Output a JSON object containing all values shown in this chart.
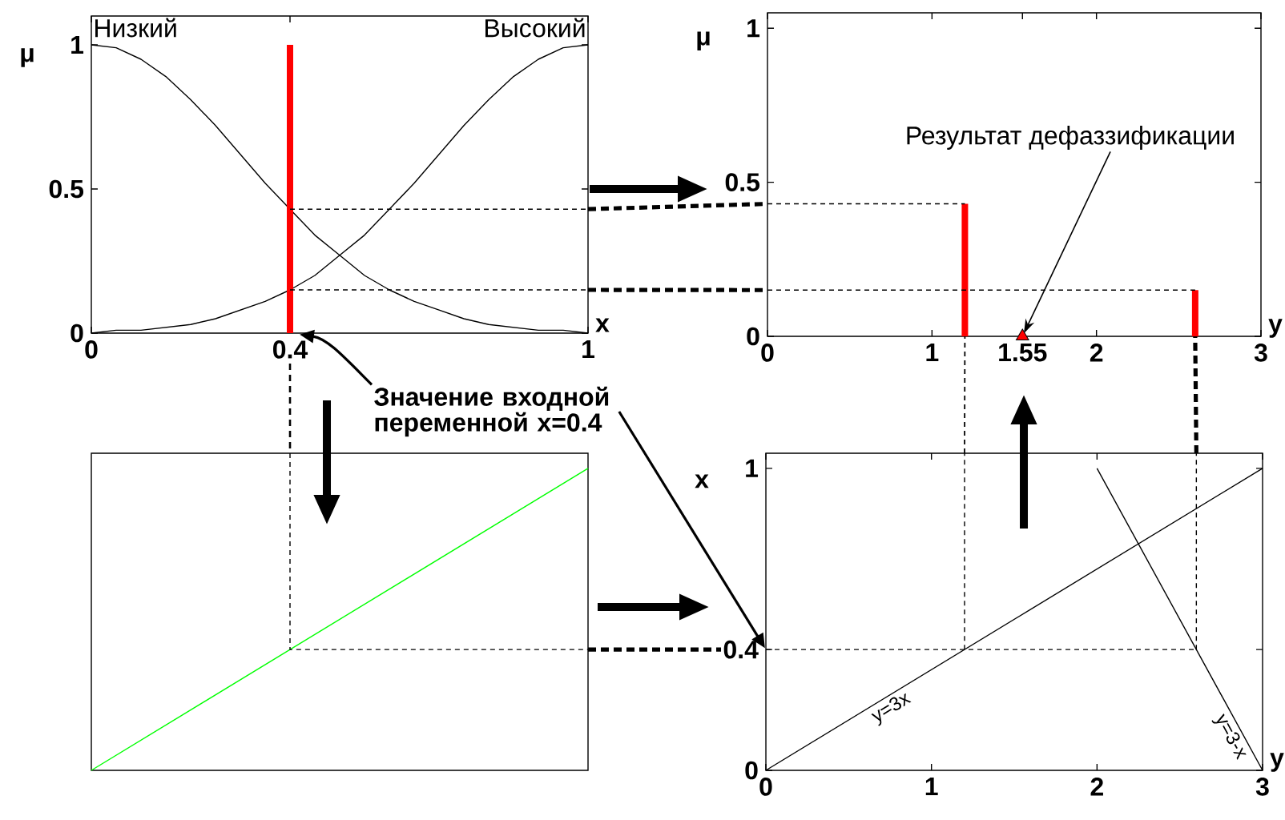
{
  "chart_data": [
    {
      "type": "line",
      "xlabel": "x",
      "ylabel": "μ",
      "xlim": [
        0,
        1
      ],
      "ylim": [
        0,
        1.1
      ],
      "xticks": [
        0,
        0.4,
        1
      ],
      "yticks": [
        0,
        0.5,
        1
      ],
      "legend": "top",
      "annotations": [
        "Значение входной переменной x=0.4"
      ],
      "series": [
        {
          "name": "Низкий",
          "color": "#000000",
          "x": [
            0,
            0.05,
            0.1,
            0.15,
            0.2,
            0.25,
            0.3,
            0.35,
            0.4,
            0.45,
            0.5,
            0.55,
            0.6,
            0.65,
            0.7,
            0.75,
            0.8,
            0.85,
            0.9,
            0.95,
            1
          ],
          "values": [
            1.0,
            0.99,
            0.95,
            0.89,
            0.81,
            0.72,
            0.62,
            0.52,
            0.43,
            0.34,
            0.27,
            0.2,
            0.15,
            0.11,
            0.08,
            0.05,
            0.03,
            0.02,
            0.01,
            0.01,
            0.0
          ]
        },
        {
          "name": "Высокий",
          "color": "#000000",
          "x": [
            0,
            0.05,
            0.1,
            0.15,
            0.2,
            0.25,
            0.3,
            0.35,
            0.4,
            0.45,
            0.5,
            0.55,
            0.6,
            0.65,
            0.7,
            0.75,
            0.8,
            0.85,
            0.9,
            0.95,
            1
          ],
          "values": [
            0.0,
            0.01,
            0.01,
            0.02,
            0.03,
            0.05,
            0.08,
            0.11,
            0.15,
            0.2,
            0.27,
            0.34,
            0.43,
            0.52,
            0.62,
            0.72,
            0.81,
            0.89,
            0.95,
            0.99,
            1.0
          ]
        },
        {
          "type": "bar",
          "color": "#ff0000",
          "x": [
            0.4
          ],
          "values": [
            1
          ]
        },
        {
          "color": "#000000",
          "line_style": "dashed",
          "x": [
            0.4,
            1
          ],
          "values": [
            0.43,
            0.43
          ]
        },
        {
          "color": "#000000",
          "line_style": "dashed",
          "x": [
            0.4,
            1
          ],
          "values": [
            0.15,
            0.15
          ]
        }
      ]
    },
    {
      "type": "bar",
      "xlabel": "y",
      "ylabel": "μ",
      "xlim": [
        0,
        3
      ],
      "ylim": [
        0,
        1.05
      ],
      "xticks": [
        0,
        1,
        1.55,
        2,
        3
      ],
      "yticks": [
        0,
        0.5,
        1
      ],
      "annotations": [
        {
          "text": "Результат дефаззификации",
          "x": 1.55,
          "y": 0
        }
      ],
      "series": [
        {
          "color": "#ff0000",
          "x": [
            1.2,
            2.6
          ],
          "values": [
            0.43,
            0.15
          ]
        },
        {
          "type": "scatter",
          "marker": "triangle",
          "color": "#ff0000",
          "x": [
            1.55
          ],
          "values": [
            0
          ]
        },
        {
          "type": "line",
          "color": "#000000",
          "line_style": "dashed",
          "x": [
            0,
            1.2
          ],
          "values": [
            0.43,
            0.43
          ]
        },
        {
          "type": "line",
          "color": "#000000",
          "line_style": "dashed",
          "x": [
            0,
            2.6
          ],
          "values": [
            0.15,
            0.15
          ]
        }
      ]
    },
    {
      "type": "line",
      "xlim": [
        0,
        1
      ],
      "ylim": [
        0,
        1.05
      ],
      "tick_labels": false,
      "series": [
        {
          "color": "#00ff00",
          "x": [
            0,
            1
          ],
          "values": [
            0,
            1
          ]
        },
        {
          "color": "#000000",
          "line_style": "dashed",
          "x": [
            0.4,
            0.4,
            1
          ],
          "values": [
            1.05,
            0.4,
            0.4
          ]
        }
      ]
    },
    {
      "type": "line",
      "xlabel": "y",
      "ylabel": "x",
      "xlim": [
        0,
        3
      ],
      "ylim": [
        0,
        1.05
      ],
      "xticks": [
        0,
        1,
        2,
        3
      ],
      "yticks": [
        0,
        0.4,
        1
      ],
      "series": [
        {
          "name": "y=3x",
          "color": "#000000",
          "x": [
            0,
            3
          ],
          "values": [
            0,
            1
          ]
        },
        {
          "name": "y=3-x",
          "color": "#000000",
          "x": [
            2,
            3
          ],
          "values": [
            1,
            0
          ]
        },
        {
          "color": "#000000",
          "line_style": "dashed",
          "x": [
            0,
            2.6
          ],
          "values": [
            0.4,
            0.4
          ]
        },
        {
          "color": "#000000",
          "line_style": "dashed",
          "x": [
            1.2,
            1.2
          ],
          "values": [
            0.4,
            1.05
          ]
        },
        {
          "color": "#000000",
          "line_style": "dashed",
          "x": [
            2.6,
            2.6
          ],
          "values": [
            0.4,
            1.05
          ]
        }
      ]
    }
  ]
}
